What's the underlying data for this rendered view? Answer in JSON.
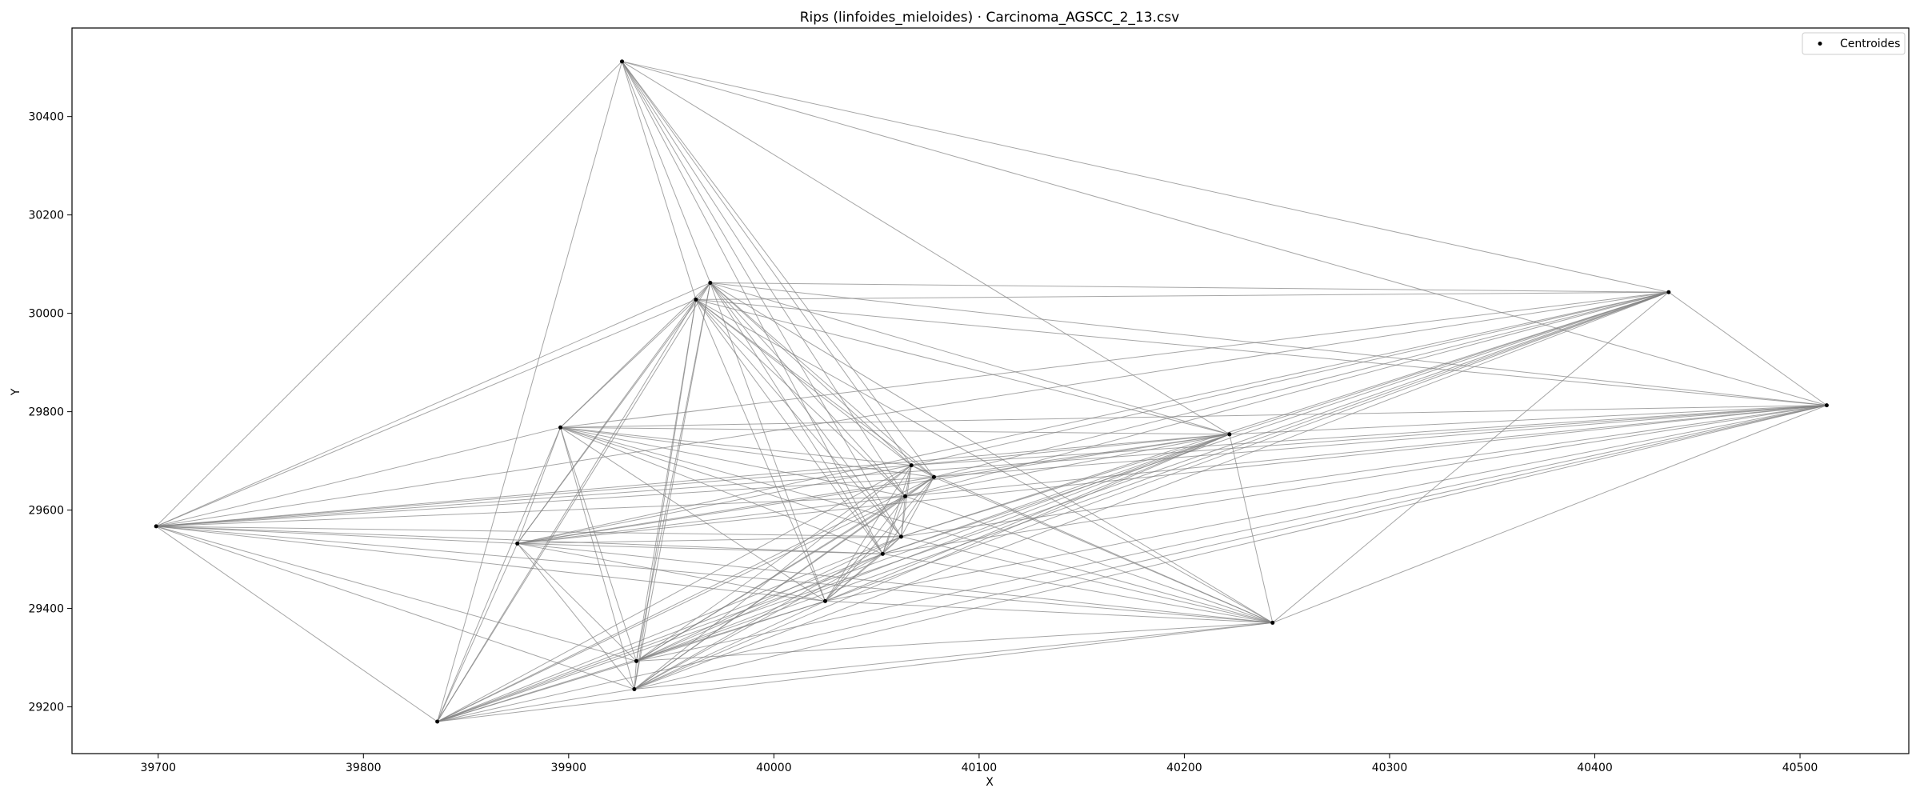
{
  "chart_data": {
    "type": "scatter",
    "title": "Rips (linfoides_mieloides) · Carcinoma_AGSCC_2_13.csv",
    "xlabel": "X",
    "ylabel": "Y",
    "xlim": [
      39658,
      40553
    ],
    "ylim": [
      29105,
      30580
    ],
    "xticks": [
      39700,
      39800,
      39900,
      40000,
      40100,
      40200,
      40300,
      40400,
      40500
    ],
    "yticks": [
      29200,
      29400,
      29600,
      29800,
      30000,
      30200,
      30400
    ],
    "grid": false,
    "legend": {
      "position": "top-right",
      "entries": [
        "Centroides"
      ]
    },
    "colors": {
      "points": "#000000",
      "edges": "#808080"
    },
    "points": [
      {
        "x": 39699,
        "y": 29567
      },
      {
        "x": 39836,
        "y": 29170
      },
      {
        "x": 39875,
        "y": 29532
      },
      {
        "x": 39896,
        "y": 29768
      },
      {
        "x": 39926,
        "y": 30512
      },
      {
        "x": 39932,
        "y": 29236
      },
      {
        "x": 39933,
        "y": 29293
      },
      {
        "x": 39962,
        "y": 30028
      },
      {
        "x": 39969,
        "y": 30062
      },
      {
        "x": 40025,
        "y": 29415
      },
      {
        "x": 40053,
        "y": 29511
      },
      {
        "x": 40062,
        "y": 29546
      },
      {
        "x": 40064,
        "y": 29628
      },
      {
        "x": 40067,
        "y": 29691
      },
      {
        "x": 40078,
        "y": 29667
      },
      {
        "x": 40222,
        "y": 29754
      },
      {
        "x": 40243,
        "y": 29371
      },
      {
        "x": 40436,
        "y": 30043
      },
      {
        "x": 40513,
        "y": 29813
      }
    ],
    "edges": [
      [
        0,
        1
      ],
      [
        0,
        2
      ],
      [
        0,
        3
      ],
      [
        0,
        4
      ],
      [
        0,
        5
      ],
      [
        0,
        6
      ],
      [
        0,
        7
      ],
      [
        0,
        8
      ],
      [
        0,
        9
      ],
      [
        0,
        10
      ],
      [
        0,
        11
      ],
      [
        0,
        12
      ],
      [
        0,
        13
      ],
      [
        0,
        14
      ],
      [
        0,
        15
      ],
      [
        0,
        16
      ],
      [
        0,
        17
      ],
      [
        0,
        18
      ],
      [
        1,
        2
      ],
      [
        1,
        3
      ],
      [
        1,
        4
      ],
      [
        1,
        5
      ],
      [
        1,
        6
      ],
      [
        1,
        7
      ],
      [
        1,
        8
      ],
      [
        1,
        9
      ],
      [
        1,
        10
      ],
      [
        1,
        11
      ],
      [
        1,
        12
      ],
      [
        1,
        13
      ],
      [
        1,
        14
      ],
      [
        1,
        15
      ],
      [
        1,
        16
      ],
      [
        1,
        17
      ],
      [
        1,
        18
      ],
      [
        2,
        3
      ],
      [
        2,
        5
      ],
      [
        2,
        6
      ],
      [
        2,
        7
      ],
      [
        2,
        8
      ],
      [
        2,
        9
      ],
      [
        2,
        10
      ],
      [
        2,
        11
      ],
      [
        2,
        12
      ],
      [
        2,
        13
      ],
      [
        2,
        14
      ],
      [
        2,
        15
      ],
      [
        2,
        16
      ],
      [
        2,
        17
      ],
      [
        2,
        18
      ],
      [
        3,
        5
      ],
      [
        3,
        6
      ],
      [
        3,
        7
      ],
      [
        3,
        8
      ],
      [
        3,
        9
      ],
      [
        3,
        10
      ],
      [
        3,
        11
      ],
      [
        3,
        12
      ],
      [
        3,
        13
      ],
      [
        3,
        14
      ],
      [
        3,
        15
      ],
      [
        3,
        16
      ],
      [
        3,
        17
      ],
      [
        3,
        18
      ],
      [
        4,
        7
      ],
      [
        4,
        8
      ],
      [
        4,
        10
      ],
      [
        4,
        11
      ],
      [
        4,
        12
      ],
      [
        4,
        13
      ],
      [
        4,
        14
      ],
      [
        4,
        15
      ],
      [
        4,
        17
      ],
      [
        4,
        18
      ],
      [
        5,
        6
      ],
      [
        5,
        7
      ],
      [
        5,
        8
      ],
      [
        5,
        9
      ],
      [
        5,
        10
      ],
      [
        5,
        11
      ],
      [
        5,
        12
      ],
      [
        5,
        13
      ],
      [
        5,
        14
      ],
      [
        5,
        15
      ],
      [
        5,
        16
      ],
      [
        5,
        17
      ],
      [
        5,
        18
      ],
      [
        6,
        7
      ],
      [
        6,
        8
      ],
      [
        6,
        9
      ],
      [
        6,
        10
      ],
      [
        6,
        11
      ],
      [
        6,
        12
      ],
      [
        6,
        13
      ],
      [
        6,
        14
      ],
      [
        6,
        15
      ],
      [
        6,
        16
      ],
      [
        6,
        17
      ],
      [
        6,
        18
      ],
      [
        7,
        8
      ],
      [
        7,
        9
      ],
      [
        7,
        10
      ],
      [
        7,
        11
      ],
      [
        7,
        12
      ],
      [
        7,
        13
      ],
      [
        7,
        14
      ],
      [
        7,
        15
      ],
      [
        7,
        16
      ],
      [
        7,
        17
      ],
      [
        7,
        18
      ],
      [
        8,
        9
      ],
      [
        8,
        10
      ],
      [
        8,
        11
      ],
      [
        8,
        12
      ],
      [
        8,
        13
      ],
      [
        8,
        14
      ],
      [
        8,
        15
      ],
      [
        8,
        16
      ],
      [
        8,
        17
      ],
      [
        8,
        18
      ],
      [
        9,
        10
      ],
      [
        9,
        11
      ],
      [
        9,
        12
      ],
      [
        9,
        13
      ],
      [
        9,
        14
      ],
      [
        9,
        15
      ],
      [
        9,
        16
      ],
      [
        9,
        17
      ],
      [
        9,
        18
      ],
      [
        10,
        11
      ],
      [
        10,
        12
      ],
      [
        10,
        13
      ],
      [
        10,
        14
      ],
      [
        10,
        15
      ],
      [
        10,
        16
      ],
      [
        10,
        17
      ],
      [
        10,
        18
      ],
      [
        11,
        12
      ],
      [
        11,
        13
      ],
      [
        11,
        14
      ],
      [
        11,
        15
      ],
      [
        11,
        16
      ],
      [
        11,
        17
      ],
      [
        11,
        18
      ],
      [
        12,
        13
      ],
      [
        12,
        14
      ],
      [
        12,
        15
      ],
      [
        12,
        16
      ],
      [
        12,
        17
      ],
      [
        12,
        18
      ],
      [
        13,
        14
      ],
      [
        13,
        15
      ],
      [
        13,
        16
      ],
      [
        13,
        17
      ],
      [
        13,
        18
      ],
      [
        14,
        15
      ],
      [
        14,
        16
      ],
      [
        14,
        17
      ],
      [
        14,
        18
      ],
      [
        15,
        16
      ],
      [
        15,
        17
      ],
      [
        15,
        18
      ],
      [
        16,
        17
      ],
      [
        16,
        18
      ],
      [
        17,
        18
      ]
    ]
  }
}
